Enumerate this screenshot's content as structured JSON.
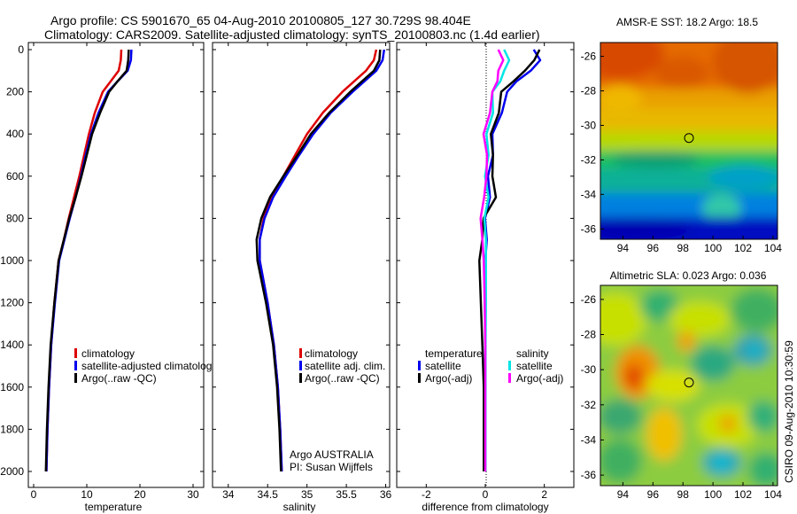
{
  "title": {
    "line1": "Argo profile: CS 5901670_65 04-Aug-2010 20100805_127 30.729S 98.404E",
    "line2": "Climatology: CARS2009. Satellite-adjusted climatology: synTS_20100803.nc (1.4d earlier)"
  },
  "side_label": "CSIRO 09-Aug-2010 10:30:59",
  "colors": {
    "red": "#dd0000",
    "blue": "#0000ee",
    "black": "#000000",
    "cyan": "#00e5e5",
    "magenta": "#ff00ff"
  },
  "chart_data": [
    {
      "type": "line",
      "name": "temperature",
      "xlabel": "temperature",
      "ylabel": "",
      "xlim": [
        -1,
        32
      ],
      "ylim": [
        0,
        2060
      ],
      "xticks": [
        0,
        10,
        20,
        30
      ],
      "yticks": [
        0,
        200,
        400,
        600,
        800,
        1000,
        1200,
        1400,
        1600,
        1800,
        2000
      ],
      "y": [
        0,
        50,
        100,
        150,
        200,
        300,
        400,
        500,
        600,
        700,
        800,
        900,
        1000,
        1200,
        1400,
        1600,
        1800,
        2000
      ],
      "series": [
        {
          "name": "climatology",
          "color": "red",
          "values": [
            16.5,
            16.4,
            16.0,
            14.5,
            13.0,
            11.5,
            10.4,
            9.5,
            8.6,
            7.6,
            6.6,
            5.7,
            4.7,
            3.9,
            3.3,
            2.9,
            2.6,
            2.4
          ]
        },
        {
          "name": "satellite-adjusted climatology",
          "color": "blue",
          "values": [
            18.4,
            18.3,
            17.7,
            15.8,
            14.0,
            12.2,
            10.8,
            9.8,
            8.9,
            7.9,
            6.8,
            5.8,
            4.8,
            4.0,
            3.3,
            2.9,
            2.6,
            2.4
          ]
        },
        {
          "name": "Argo(..raw -QC)",
          "color": "black",
          "values": [
            17.9,
            17.8,
            17.5,
            15.8,
            14.2,
            12.5,
            11.0,
            10.0,
            9.0,
            7.9,
            6.7,
            5.7,
            4.7,
            3.9,
            3.2,
            2.8,
            2.5,
            2.3
          ]
        }
      ],
      "legend": {
        "placement": "lower-right",
        "entries": [
          "climatology",
          "satellite-adjusted climatology",
          "Argo(..raw -QC)"
        ]
      }
    },
    {
      "type": "line",
      "name": "salinity",
      "xlabel": "salinity",
      "xlim": [
        33.8,
        36.05
      ],
      "ylim": [
        0,
        2060
      ],
      "xticks": [
        34,
        34.5,
        35,
        35.5,
        36
      ],
      "xticklabels": [
        "34",
        "34.5",
        "35",
        "35.5",
        "36"
      ],
      "y": [
        0,
        50,
        100,
        200,
        300,
        400,
        500,
        600,
        700,
        800,
        900,
        1000,
        1200,
        1400,
        1600,
        1800,
        2000
      ],
      "series": [
        {
          "name": "climatology",
          "color": "red",
          "values": [
            35.88,
            35.85,
            35.75,
            35.45,
            35.2,
            35.0,
            34.85,
            34.7,
            34.55,
            34.45,
            34.4,
            34.4,
            34.5,
            34.58,
            34.63,
            34.66,
            34.68
          ]
        },
        {
          "name": "satellite adj. clim.",
          "color": "blue",
          "values": [
            35.98,
            35.96,
            35.88,
            35.58,
            35.3,
            35.08,
            34.9,
            34.73,
            34.57,
            34.46,
            34.4,
            34.4,
            34.5,
            34.58,
            34.63,
            34.66,
            34.68
          ]
        },
        {
          "name": "Argo(..raw -QC)",
          "color": "black",
          "values": [
            35.93,
            35.92,
            35.85,
            35.55,
            35.28,
            35.05,
            34.88,
            34.7,
            34.53,
            34.42,
            34.36,
            34.37,
            34.48,
            34.57,
            34.62,
            34.65,
            34.67
          ]
        }
      ],
      "legend": {
        "placement": "lower-right",
        "entries": [
          "climatology",
          "satellite adj. clim.",
          "Argo(..raw -QC)"
        ]
      },
      "annotation": {
        "line1": "Argo AUSTRALIA",
        "line2": "PI: Susan Wijffels"
      }
    },
    {
      "type": "line",
      "name": "difference",
      "xlabel": "difference from climatology",
      "xlim": [
        -3.0,
        3.0
      ],
      "ylim": [
        0,
        2060
      ],
      "xticks": [
        -2,
        0,
        2
      ],
      "y": [
        0,
        50,
        100,
        150,
        200,
        300,
        400,
        500,
        600,
        700,
        800,
        900,
        1000,
        1200,
        1400,
        1600,
        1800,
        2000
      ],
      "series": [
        {
          "name": "temperature satellite",
          "color": "blue",
          "values": [
            1.7,
            1.8,
            1.6,
            1.0,
            0.8,
            0.5,
            0.3,
            0.2,
            0.15,
            0.1,
            0.05,
            0.05,
            0.0,
            0.0,
            0.0,
            0.0,
            0.0,
            0.0
          ]
        },
        {
          "name": "temperature Argo(-adj)",
          "color": "black",
          "values": [
            1.9,
            1.6,
            1.4,
            0.9,
            0.6,
            0.4,
            0.25,
            0.2,
            0.3,
            0.3,
            0.0,
            -0.1,
            -0.2,
            -0.15,
            -0.1,
            -0.05,
            -0.05,
            -0.05
          ]
        },
        {
          "name": "salinity satellite",
          "color": "cyan",
          "values": [
            0.7,
            0.75,
            0.7,
            0.45,
            0.3,
            0.2,
            0.1,
            0.05,
            0.05,
            0.05,
            0.03,
            0.02,
            0.02,
            0.02,
            0.01,
            0.01,
            0.01,
            0.01
          ]
        },
        {
          "name": "salinity Argo(-adj)",
          "color": "magenta",
          "values": [
            0.5,
            0.55,
            0.5,
            0.35,
            0.3,
            0.1,
            0.0,
            0.0,
            0.1,
            -0.1,
            -0.1,
            -0.1,
            -0.05,
            -0.02,
            0.0,
            0.0,
            0.0,
            0.0
          ]
        }
      ],
      "legend": {
        "placement": "lower-center",
        "temperature_heading": "temperature",
        "salinity_heading": "salinity",
        "entries": [
          "satellite",
          "Argo(-adj)",
          "satellite",
          "Argo(-adj)"
        ]
      }
    },
    {
      "type": "heatmap",
      "name": "sst_map",
      "title": "AMSR-E SST: 18.2  Argo: 18.5",
      "xlim": [
        92.5,
        104.3
      ],
      "ylim": [
        -36.6,
        -25.2
      ],
      "xticks": [
        94,
        96,
        98,
        100,
        102,
        104
      ],
      "yticks": [
        -26,
        -28,
        -30,
        -32,
        -34,
        -36
      ],
      "marker": {
        "lon": 98.4,
        "lat": -30.73
      }
    },
    {
      "type": "heatmap",
      "name": "sla_map",
      "title": "Altimetric SLA: 0.023  Argo: 0.036",
      "xlim": [
        92.5,
        104.3
      ],
      "ylim": [
        -36.6,
        -25.2
      ],
      "xticks": [
        94,
        96,
        98,
        100,
        102,
        104
      ],
      "yticks": [
        -26,
        -28,
        -30,
        -32,
        -34,
        -36
      ],
      "marker": {
        "lon": 98.4,
        "lat": -30.73
      }
    }
  ]
}
